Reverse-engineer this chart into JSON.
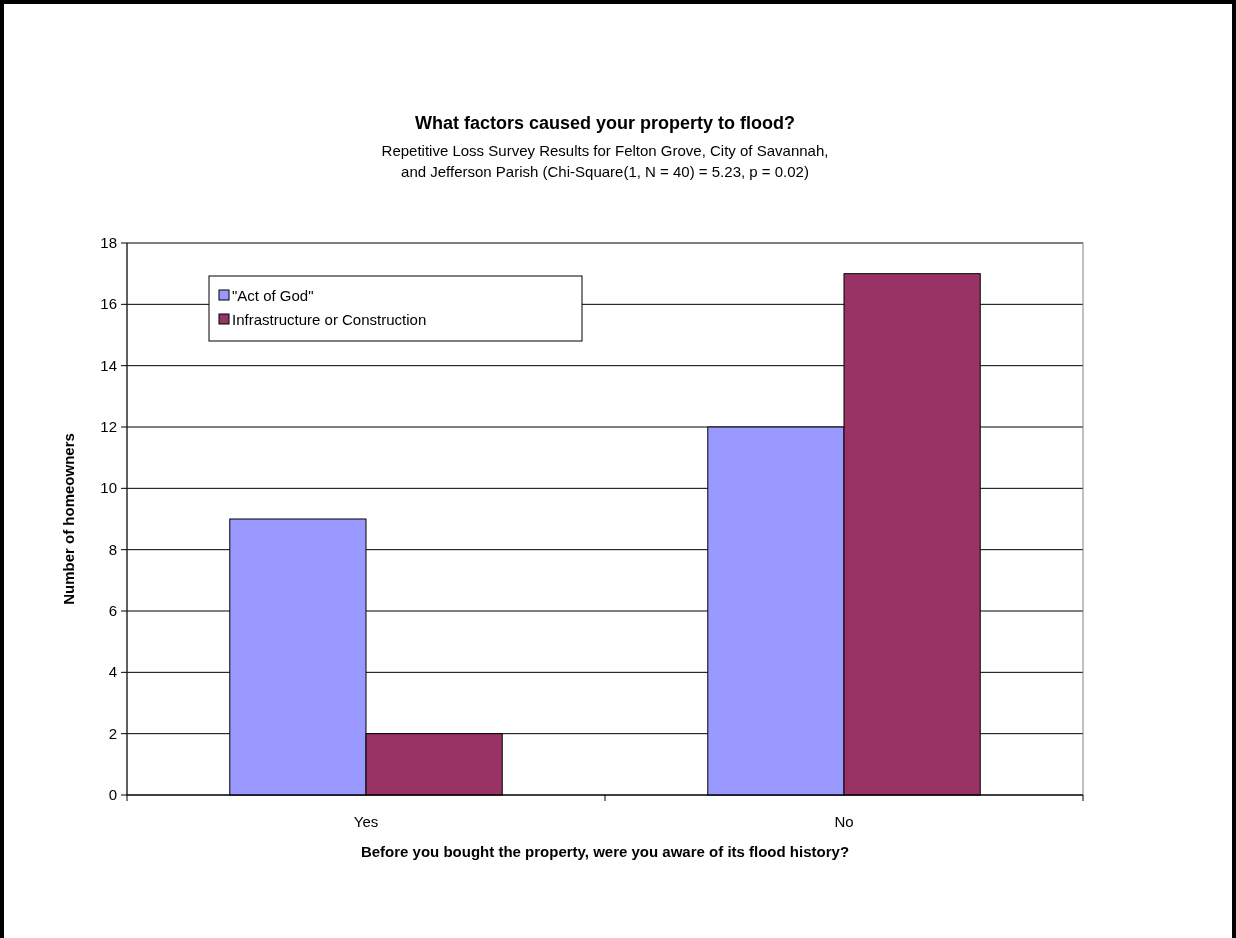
{
  "chart_data": {
    "type": "bar",
    "title": "What factors caused your property to flood?",
    "subtitle": "Repetitive Loss Survey Results for Felton Grove, City of Savannah,\nand Jefferson Parish (Chi-Square(1, N = 40) = 5.23, p = 0.02)",
    "xlabel": "Before you bought the property, were you aware of its flood history?",
    "ylabel": "Number of homeowners",
    "categories": [
      "Yes",
      "No"
    ],
    "series": [
      {
        "name": "\"Act of God\"",
        "color": "#9999ff",
        "values": [
          9,
          12
        ]
      },
      {
        "name": "Infrastructure or Construction",
        "color": "#993366",
        "values": [
          2,
          17
        ]
      }
    ],
    "ylim": [
      0,
      18
    ],
    "yticks": [
      0,
      2,
      4,
      6,
      8,
      10,
      12,
      14,
      16,
      18
    ],
    "grid": "y",
    "legend": "top left"
  }
}
